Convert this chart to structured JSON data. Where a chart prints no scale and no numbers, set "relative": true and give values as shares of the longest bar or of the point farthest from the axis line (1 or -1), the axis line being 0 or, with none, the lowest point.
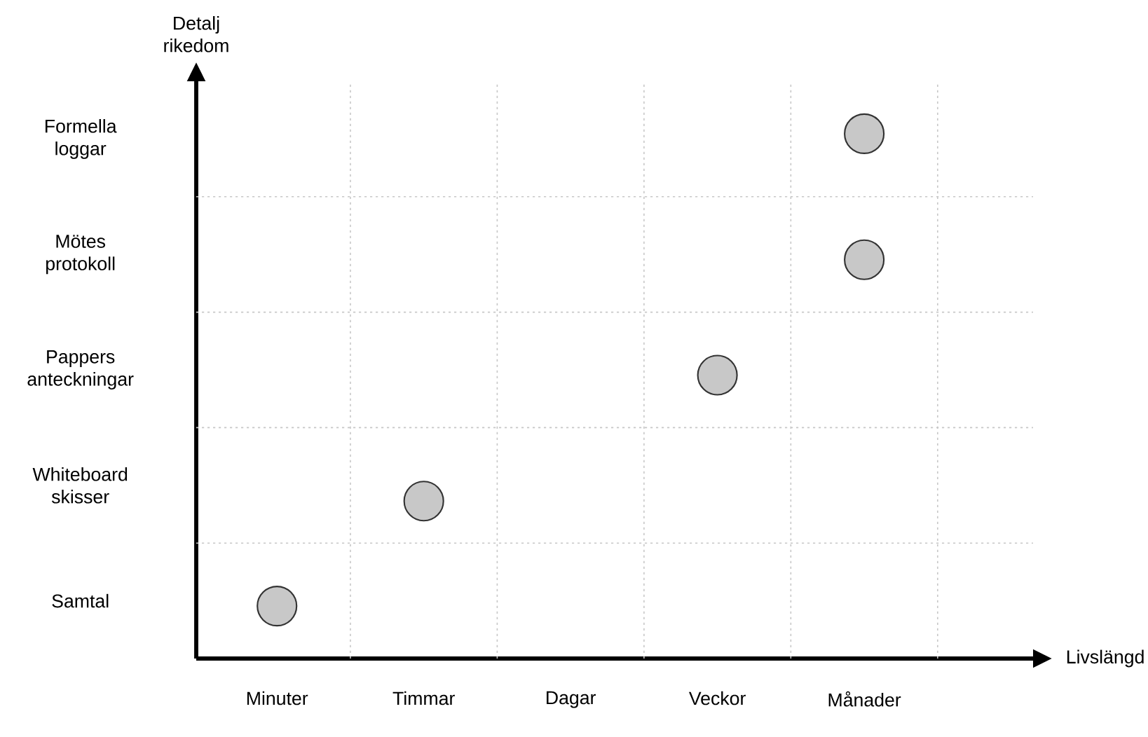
{
  "chart_data": {
    "type": "scatter",
    "xlabel": "Livslängd",
    "ylabel": "Detalj rikedom",
    "relative": true,
    "categories": [
      "Minuter",
      "Timmar",
      "Dagar",
      "Veckor",
      "Månader"
    ],
    "series": [
      {
        "color": "#c8c8c8",
        "values": [
          0.1,
          0.3,
          null,
          0.54,
          0.76
        ]
      },
      {
        "color": "#c8c8c8",
        "values": [
          null,
          null,
          null,
          null,
          1
        ]
      }
    ],
    "marker": "circle",
    "grid": true,
    "annotations": [
      "Samtal",
      "Whiteboard skisser",
      "Pappers anteckningar",
      "Mötes protokoll",
      "Formella loggar"
    ]
  }
}
